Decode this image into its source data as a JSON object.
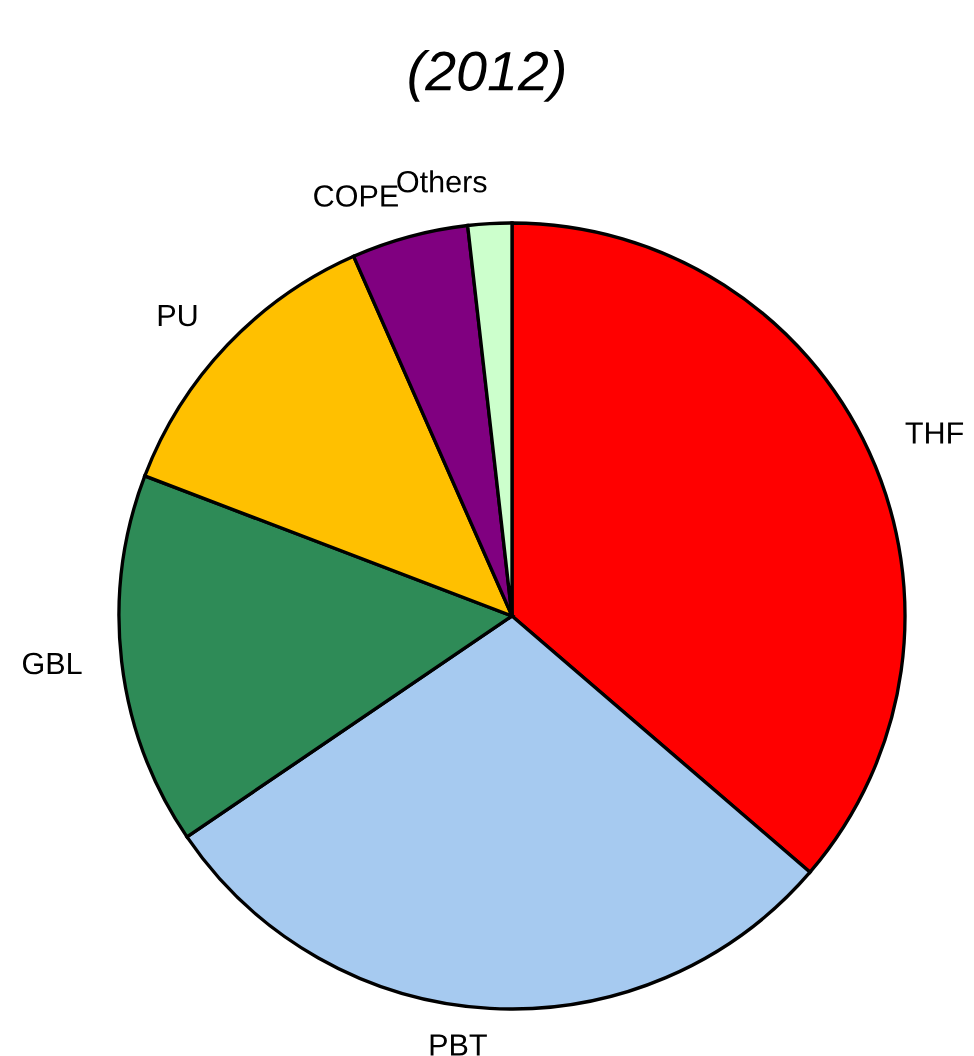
{
  "chart_data": {
    "type": "pie",
    "title": "(2012)",
    "categories": [
      "THF",
      "PBT",
      "GBL",
      "PU",
      "COPE",
      "Others"
    ],
    "values": [
      36.3,
      29.2,
      15.3,
      12.6,
      4.8,
      1.8
    ],
    "colors": [
      "#ff0000",
      "#a6caf0",
      "#2e8b57",
      "#ffc000",
      "#800080",
      "#ccffcc"
    ],
    "legend": false
  }
}
